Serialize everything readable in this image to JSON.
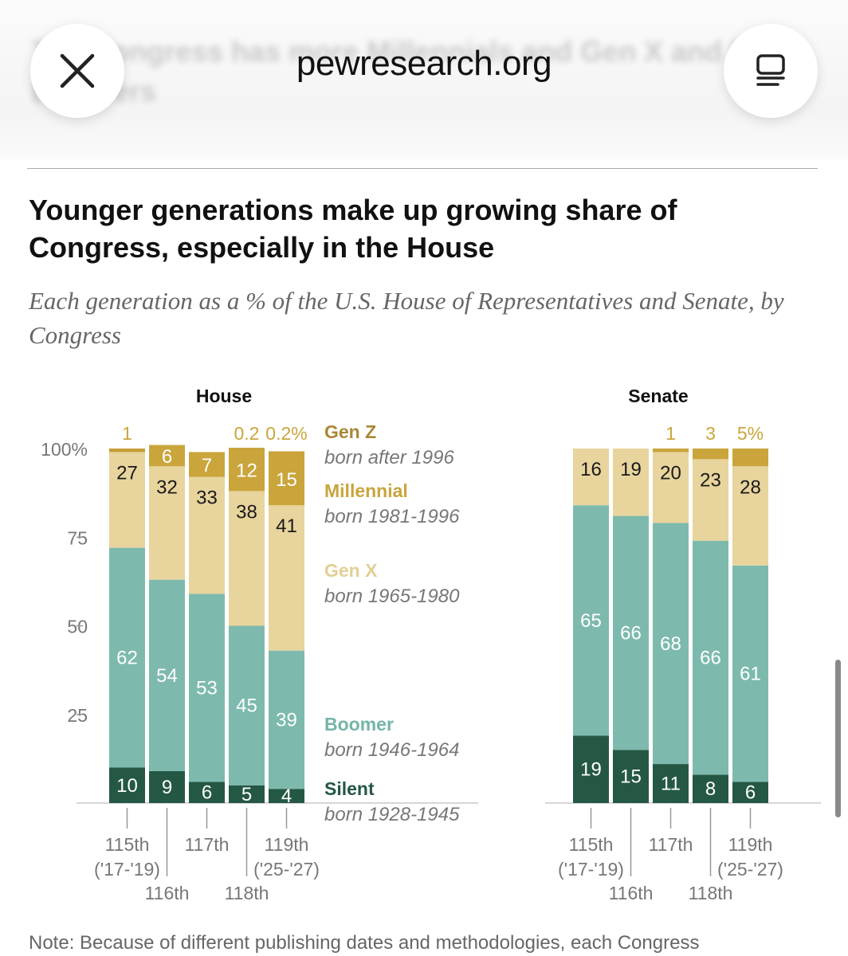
{
  "browser": {
    "domain": "pewresearch.org",
    "blurred_headline": "The Congress has more Millennials and Gen X and fewer Boomers",
    "close_icon": "close-icon",
    "menu_icon": "reader-menu-icon"
  },
  "article": {
    "title": "Younger generations make up growing share of Congress, especially in the House",
    "subtitle": "Each generation as a % of the U.S. House of Representatives and Senate, by Congress",
    "note": "Note: Because of different publishing dates and methodologies, each Congress"
  },
  "colors": {
    "silent": "#245844",
    "boomer": "#7dbaad",
    "genx": "#e8d49d",
    "millennial": "#c9a53b",
    "genz": "#c59e34",
    "genz_label": "#a88835",
    "millennial_label": "#c9a53b",
    "genx_label": "#e3cf95",
    "boomer_label": "#74b5a8",
    "silent_label": "#245844"
  },
  "chart_data": {
    "type": "bar",
    "stacked": true,
    "ylim": [
      0,
      100
    ],
    "yticks": [
      "100%",
      "75",
      "50",
      "25"
    ],
    "legend": [
      {
        "key": "genz",
        "name": "Gen Z",
        "born": "born after 1996"
      },
      {
        "key": "millennial",
        "name": "Millennial",
        "born": "born 1981-1996"
      },
      {
        "key": "genx",
        "name": "Gen X",
        "born": "born 1965-1980"
      },
      {
        "key": "boomer",
        "name": "Boomer",
        "born": "born 1946-1964"
      },
      {
        "key": "silent",
        "name": "Silent",
        "born": "born 1928-1945"
      }
    ],
    "panels": [
      {
        "name": "House",
        "categories": [
          "115th",
          "116th",
          "117th",
          "118th",
          "119th"
        ],
        "category_years": [
          "('17-'19)",
          "",
          "",
          "",
          "('25-'27)"
        ],
        "series": [
          {
            "key": "silent",
            "values": [
              10,
              9,
              6,
              5,
              4
            ],
            "labels": [
              "10",
              "9",
              "6",
              "5",
              "4"
            ]
          },
          {
            "key": "boomer",
            "values": [
              62,
              54,
              53,
              45,
              39
            ],
            "labels": [
              "62",
              "54",
              "53",
              "45",
              "39"
            ]
          },
          {
            "key": "genx",
            "values": [
              27,
              32,
              33,
              38,
              41
            ],
            "labels": [
              "27",
              "32",
              "33",
              "38",
              "41"
            ]
          },
          {
            "key": "millennial",
            "values": [
              0,
              6,
              7,
              12,
              15
            ],
            "labels": [
              "",
              "6",
              "7",
              "12",
              "15"
            ]
          },
          {
            "key": "genz",
            "values": [
              1,
              0,
              0,
              0.2,
              0.2
            ],
            "labels": [
              "1",
              "",
              "",
              "0.2",
              "0.2%"
            ]
          }
        ]
      },
      {
        "name": "Senate",
        "categories": [
          "115th",
          "116th",
          "117th",
          "118th",
          "119th"
        ],
        "category_years": [
          "('17-'19)",
          "",
          "",
          "",
          "('25-'27)"
        ],
        "series": [
          {
            "key": "silent",
            "values": [
              19,
              15,
              11,
              8,
              6
            ],
            "labels": [
              "19",
              "15",
              "11",
              "8",
              "6"
            ]
          },
          {
            "key": "boomer",
            "values": [
              65,
              66,
              68,
              66,
              61
            ],
            "labels": [
              "65",
              "66",
              "68",
              "66",
              "61"
            ]
          },
          {
            "key": "genx",
            "values": [
              16,
              19,
              20,
              23,
              28
            ],
            "labels": [
              "16",
              "19",
              "20",
              "23",
              "28"
            ]
          },
          {
            "key": "millennial",
            "values": [
              0,
              0,
              1,
              3,
              5
            ],
            "labels": [
              "",
              "",
              "1",
              "3",
              "5%"
            ]
          }
        ]
      }
    ]
  }
}
